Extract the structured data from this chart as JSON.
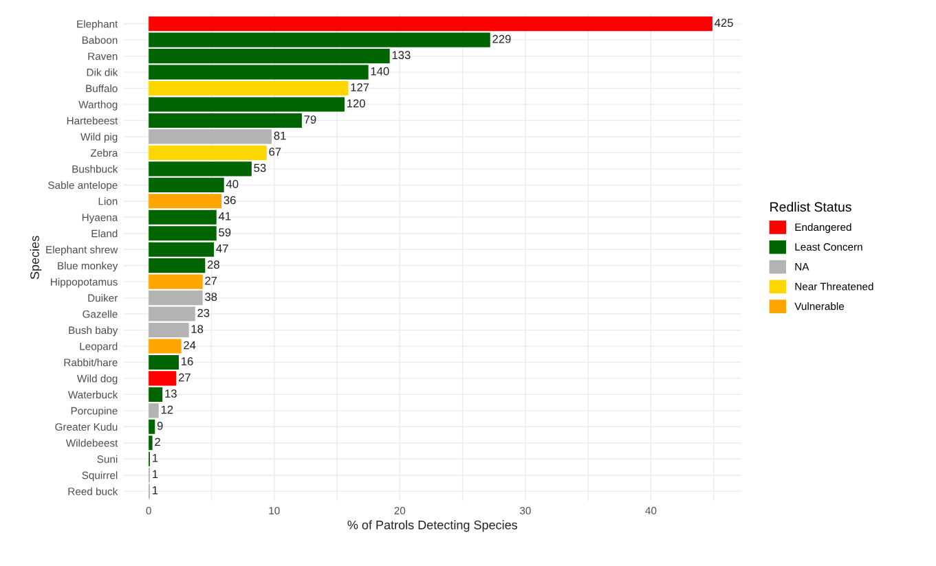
{
  "chart_data": {
    "type": "bar",
    "orientation": "horizontal",
    "xlabel": "% of Patrols Detecting Species",
    "ylabel": "Species",
    "legend_title": "Redlist Status",
    "categories": [
      "Elephant",
      "Baboon",
      "Raven",
      "Dik dik",
      "Buffalo",
      "Warthog",
      "Hartebeest",
      "Wild pig",
      "Zebra",
      "Bushbuck",
      "Sable antelope",
      "Lion",
      "Hyaena",
      "Eland",
      "Elephant shrew",
      "Blue monkey",
      "Hippopotamus",
      "Duiker",
      "Gazelle",
      "Bush baby",
      "Leopard",
      "Rabbit/hare",
      "Wild dog",
      "Waterbuck",
      "Porcupine",
      "Greater Kudu",
      "Wildebeest",
      "Suni",
      "Squirrel",
      "Reed buck"
    ],
    "series": [
      {
        "name": "Endangered",
        "color": "#ff0000",
        "values": [
          44.9,
          null,
          null,
          null,
          null,
          null,
          null,
          null,
          null,
          null,
          null,
          null,
          null,
          null,
          null,
          null,
          null,
          null,
          null,
          null,
          null,
          null,
          2.2,
          null,
          null,
          null,
          null,
          null,
          null,
          null
        ]
      },
      {
        "name": "Least Concern",
        "color": "#006400",
        "values": [
          null,
          27.2,
          19.2,
          17.5,
          null,
          15.6,
          12.2,
          null,
          null,
          8.2,
          6.0,
          null,
          5.4,
          5.4,
          5.2,
          4.5,
          null,
          null,
          null,
          null,
          null,
          2.4,
          null,
          1.1,
          null,
          0.5,
          0.3,
          0.1,
          null,
          null
        ]
      },
      {
        "name": "NA",
        "color": "#b3b3b3",
        "values": [
          null,
          null,
          null,
          null,
          null,
          null,
          null,
          9.8,
          null,
          null,
          null,
          null,
          null,
          null,
          null,
          null,
          null,
          4.3,
          3.7,
          3.2,
          null,
          null,
          null,
          null,
          0.8,
          null,
          null,
          null,
          0.1,
          0.1
        ]
      },
      {
        "name": "Near Threatened",
        "color": "#ffd700",
        "values": [
          null,
          null,
          null,
          null,
          15.9,
          null,
          null,
          null,
          9.4,
          null,
          null,
          null,
          null,
          null,
          null,
          null,
          null,
          null,
          null,
          null,
          null,
          null,
          null,
          null,
          null,
          null,
          null,
          null,
          null,
          null
        ]
      },
      {
        "name": "Vulnerable",
        "color": "#ffa500",
        "values": [
          null,
          null,
          null,
          null,
          null,
          null,
          null,
          null,
          null,
          null,
          null,
          5.8,
          null,
          null,
          null,
          null,
          4.3,
          null,
          null,
          null,
          2.6,
          null,
          null,
          null,
          null,
          null,
          null,
          null,
          null,
          null
        ]
      }
    ],
    "annotations": [
      {
        "text": "425",
        "x": 44.9,
        "y": "Elephant"
      },
      {
        "text": "229",
        "x": 27.2,
        "y": "Baboon"
      },
      {
        "text": "133",
        "x": 19.2,
        "y": "Raven"
      },
      {
        "text": "140",
        "x": 17.5,
        "y": "Dik dik"
      },
      {
        "text": "127",
        "x": 15.9,
        "y": "Buffalo"
      },
      {
        "text": "120",
        "x": 15.6,
        "y": "Warthog"
      },
      {
        "text": "79",
        "x": 12.2,
        "y": "Hartebeest"
      },
      {
        "text": "81",
        "x": 9.8,
        "y": "Wild pig"
      },
      {
        "text": "67",
        "x": 9.4,
        "y": "Zebra"
      },
      {
        "text": "53",
        "x": 8.2,
        "y": "Bushbuck"
      },
      {
        "text": "40",
        "x": 6.0,
        "y": "Sable antelope"
      },
      {
        "text": "36",
        "x": 5.8,
        "y": "Lion"
      },
      {
        "text": "41",
        "x": 5.4,
        "y": "Hyaena"
      },
      {
        "text": "59",
        "x": 5.4,
        "y": "Eland"
      },
      {
        "text": "47",
        "x": 5.2,
        "y": "Elephant shrew"
      },
      {
        "text": "28",
        "x": 4.5,
        "y": "Blue monkey"
      },
      {
        "text": "27",
        "x": 4.3,
        "y": "Hippopotamus"
      },
      {
        "text": "38",
        "x": 4.3,
        "y": "Duiker"
      },
      {
        "text": "23",
        "x": 3.7,
        "y": "Gazelle"
      },
      {
        "text": "18",
        "x": 3.2,
        "y": "Bush baby"
      },
      {
        "text": "24",
        "x": 2.6,
        "y": "Leopard"
      },
      {
        "text": "16",
        "x": 2.4,
        "y": "Rabbit/hare"
      },
      {
        "text": "27",
        "x": 2.2,
        "y": "Wild dog"
      },
      {
        "text": "13",
        "x": 1.1,
        "y": "Waterbuck"
      },
      {
        "text": "12",
        "x": 0.8,
        "y": "Porcupine"
      },
      {
        "text": "9",
        "x": 0.5,
        "y": "Greater Kudu"
      },
      {
        "text": "2",
        "x": 0.3,
        "y": "Wildebeest"
      },
      {
        "text": "1",
        "x": 0.1,
        "y": "Suni"
      },
      {
        "text": "1",
        "x": 0.1,
        "y": "Squirrel"
      },
      {
        "text": "1",
        "x": 0.1,
        "y": "Reed buck"
      }
    ],
    "xlim": [
      -2.0,
      47.2
    ],
    "xticks": [
      0,
      {
        "value": 5,
        "label": null
      },
      10,
      {
        "value": 15,
        "label": null
      },
      20,
      {
        "value": 25,
        "label": null
      },
      30,
      {
        "value": 35,
        "label": null
      },
      40,
      {
        "value": 45,
        "label": null
      }
    ],
    "grid": true,
    "legend": "right"
  }
}
